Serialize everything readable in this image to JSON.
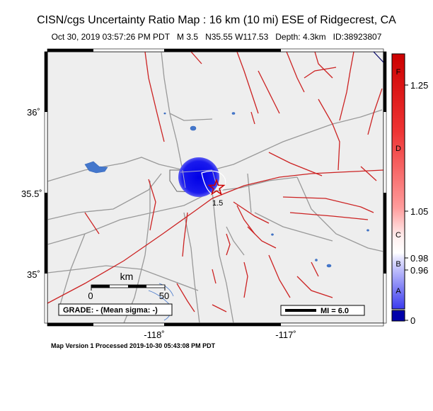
{
  "title": "CISN/cgs Uncertainty Ratio Map : 16 km (10 mi) ESE of Ridgecrest, CA",
  "subtitle": {
    "datetime": "Oct 30, 2019 03:57:26 PM PDT",
    "magnitude": "M 3.5",
    "location": "N35.55 W117.53",
    "depth": "Depth: 4.3km",
    "id": "ID:38923807"
  },
  "axes": {
    "lat_labels": [
      "36˚",
      "35.5˚",
      "35˚"
    ],
    "lon_labels": [
      "-118˚",
      "-117˚"
    ]
  },
  "scalebar": {
    "title": "km",
    "ticks": [
      "0",
      "50"
    ]
  },
  "grade_box": "GRADE: - (Mean sigma: -)",
  "mi_legend": "MI = 6.0",
  "contour_label": "1.5",
  "colorbar": {
    "letters": [
      "F",
      "D",
      "C",
      "B",
      "A"
    ],
    "values": [
      "1.25",
      "1.05",
      "0.98",
      "0.96",
      "0"
    ]
  },
  "footer": "Map Version 1 Processed 2019-10-30 05:43:08 PM PDT",
  "colors": {
    "land": "#eeeeee",
    "roads": "#999999",
    "faults": "#cc2222",
    "water": "#4477cc",
    "uncertainty_blob": "#1a1aee",
    "epicenter": "#cc0000"
  }
}
